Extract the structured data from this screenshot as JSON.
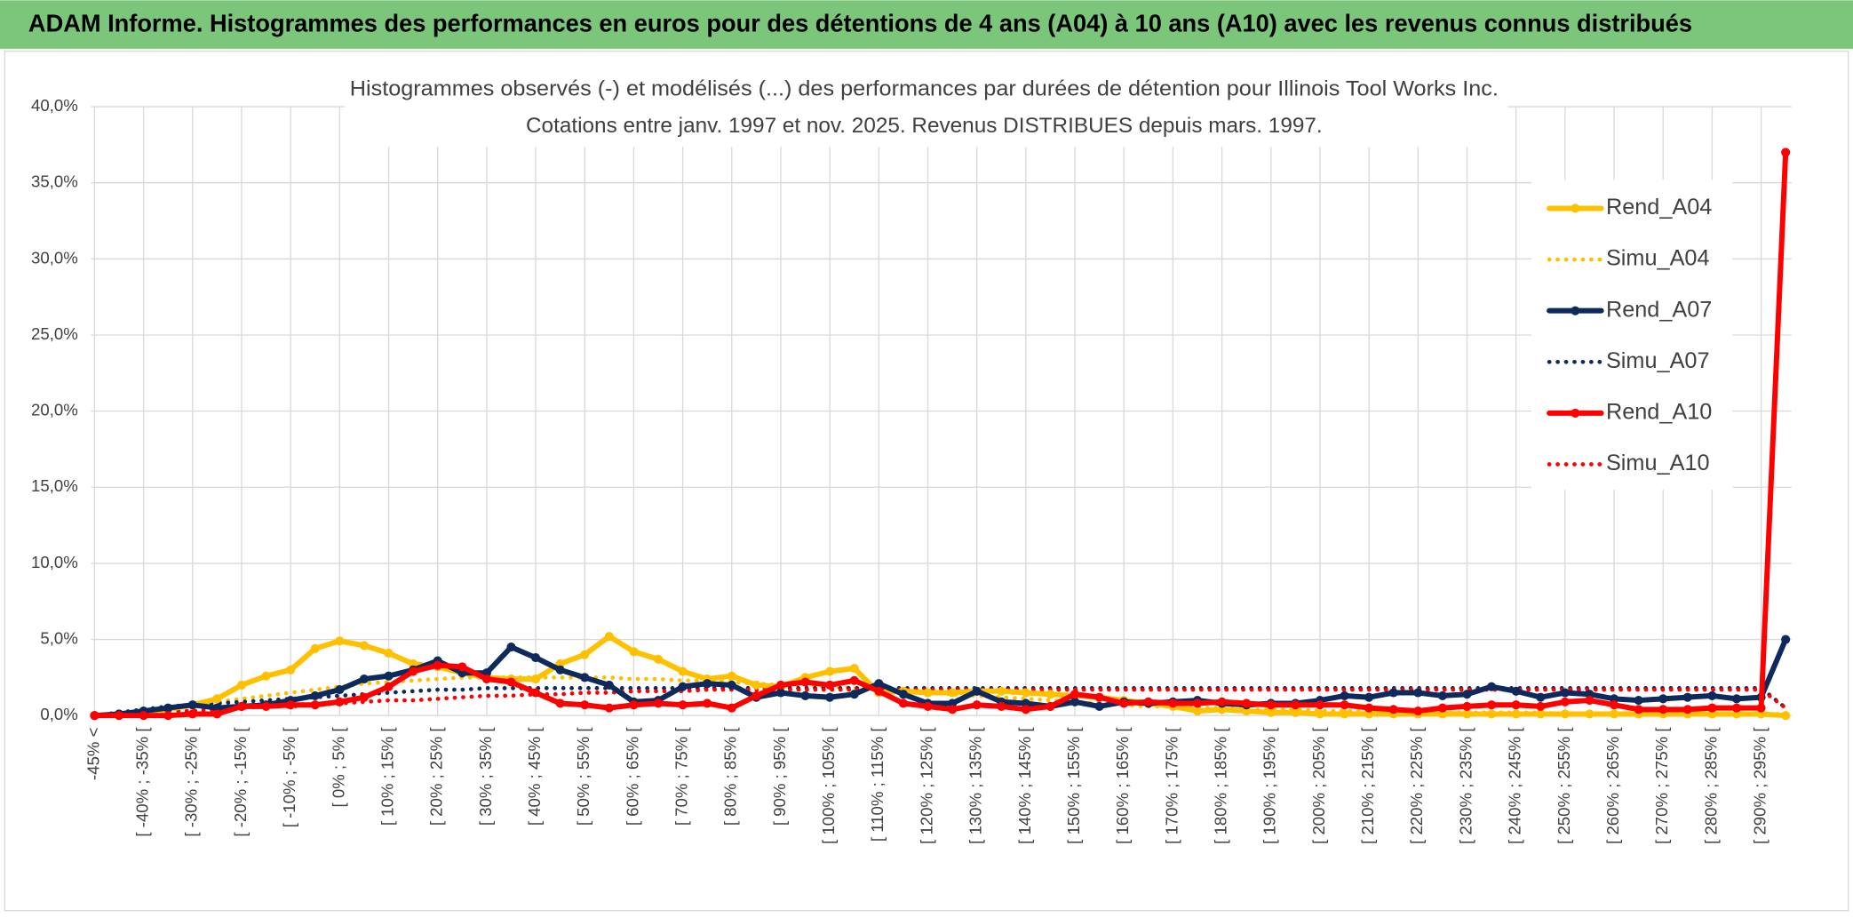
{
  "header": {
    "title": "ADAM Informe. Histogrammes des performances en euros pour des détentions de 4 ans (A04) à 10 ans (A10) avec les revenus connus distribués"
  },
  "chart_data": {
    "type": "line",
    "title": "Histogrammes observés (-) et modélisés (...) des performances par durées de détention pour Illinois Tool Works Inc.",
    "subtitle": "Cotations entre janv. 1997 et nov. 2025. Revenus DISTRIBUES depuis mars. 1997.",
    "categories": [
      "-45% <",
      null,
      "[ -40% ; -35% [",
      null,
      "[ -30% ; -25% [",
      null,
      "[ -20% ; -15% [",
      null,
      "[ -10% ; -5% [",
      null,
      "[ 0% ; 5% [",
      null,
      "[ 10% ; 15% [",
      null,
      "[ 20% ; 25% [",
      null,
      "[ 30% ; 35% [",
      null,
      "[ 40% ; 45% [",
      null,
      "[ 50% ; 55% [",
      null,
      "[ 60% ; 65% [",
      null,
      "[ 70% ; 75% [",
      null,
      "[ 80% ; 85% [",
      null,
      "[ 90% ; 95% [",
      null,
      "[ 100% ; 105% [",
      null,
      "[ 110% ; 115% [",
      null,
      "[ 120% ; 125% [",
      null,
      "[ 130% ; 135% [",
      null,
      "[ 140% ; 145% [",
      null,
      "[ 150% ; 155% [",
      null,
      "[ 160% ; 165% [",
      null,
      "[ 170% ; 175% [",
      null,
      "[ 180% ; 185% [",
      null,
      "[ 190% ; 195% [",
      null,
      "[ 200% ; 205% [",
      null,
      "[ 210% ; 215% [",
      null,
      "[ 220% ; 225% [",
      null,
      "[ 230% ; 235% [",
      null,
      "[ 240% ; 245% [",
      null,
      "[ 250% ; 255% [",
      null,
      "[ 260% ; 265% [",
      null,
      "[ 270% ; 275% [",
      null,
      "[ 280% ; 285% [",
      null,
      "[ 290% ; 295% [",
      null
    ],
    "series": [
      {
        "name": "Rend_A04",
        "color": "#ffc000",
        "style": "solid",
        "values": [
          0,
          0.1,
          0.2,
          0.4,
          0.7,
          1.1,
          2.0,
          2.6,
          3.0,
          4.4,
          4.9,
          4.6,
          4.1,
          3.4,
          3.2,
          2.8,
          2.5,
          2.4,
          2.4,
          3.4,
          4.0,
          5.2,
          4.2,
          3.7,
          2.9,
          2.4,
          2.6,
          2.0,
          1.9,
          2.5,
          2.9,
          3.1,
          1.5,
          1.6,
          1.5,
          1.5,
          1.6,
          1.6,
          1.5,
          1.4,
          1.3,
          1.2,
          1.0,
          0.8,
          0.6,
          0.3,
          0.4,
          0.3,
          0.2,
          0.2,
          0.1,
          0.1,
          0.1,
          0.1,
          0.1,
          0.1,
          0.1,
          0.1,
          0.1,
          0.1,
          0.1,
          0.1,
          0.1,
          0.1,
          0.1,
          0.1,
          0.1,
          0.1,
          0.1,
          0
        ]
      },
      {
        "name": "Simu_A04",
        "color": "#ffc000",
        "style": "dotted",
        "values": [
          0,
          0.1,
          0.3,
          0.5,
          0.7,
          0.9,
          1.1,
          1.3,
          1.5,
          1.7,
          1.9,
          2.1,
          2.2,
          2.3,
          2.4,
          2.5,
          2.5,
          2.5,
          2.5,
          2.5,
          2.5,
          2.5,
          2.4,
          2.4,
          2.3,
          2.3,
          2.2,
          2.1,
          2.0,
          2.0,
          1.9,
          1.8,
          1.7,
          1.6,
          1.5,
          1.4,
          1.3,
          1.2,
          1.1,
          1.0,
          0.9,
          0.8,
          0.7,
          0.6,
          0.6,
          0.5,
          0.5,
          0.4,
          0.4,
          0.4,
          0.3,
          0.3,
          0.3,
          0.3,
          0.2,
          0.2,
          0.2,
          0.2,
          0.2,
          0.2,
          0.1,
          0.1,
          0.1,
          0.1,
          0.1,
          0.1,
          0.1,
          0.1,
          0.1,
          0.1
        ]
      },
      {
        "name": "Rend_A07",
        "color": "#0e2a5c",
        "style": "solid",
        "values": [
          0,
          0.1,
          0.3,
          0.5,
          0.7,
          0.5,
          0.6,
          0.7,
          1.0,
          1.3,
          1.7,
          2.4,
          2.6,
          3.0,
          3.6,
          2.8,
          2.8,
          4.5,
          3.8,
          3.0,
          2.5,
          2.0,
          0.9,
          1.0,
          1.9,
          2.1,
          2.0,
          1.2,
          1.5,
          1.3,
          1.2,
          1.4,
          2.1,
          1.4,
          0.8,
          0.8,
          1.6,
          0.9,
          0.8,
          0.6,
          0.9,
          0.6,
          0.9,
          0.8,
          0.9,
          1.0,
          0.8,
          0.7,
          0.8,
          0.8,
          1.0,
          1.3,
          1.2,
          1.5,
          1.5,
          1.3,
          1.4,
          1.9,
          1.6,
          1.2,
          1.5,
          1.4,
          1.1,
          1.0,
          1.1,
          1.2,
          1.3,
          1.1,
          1.2,
          5.0
        ]
      },
      {
        "name": "Simu_A07",
        "color": "#0e2a5c",
        "style": "dotted",
        "values": [
          0,
          0.2,
          0.4,
          0.6,
          0.7,
          0.8,
          0.9,
          1.0,
          1.1,
          1.2,
          1.3,
          1.4,
          1.5,
          1.6,
          1.7,
          1.7,
          1.8,
          1.8,
          1.8,
          1.8,
          1.8,
          1.8,
          1.8,
          1.8,
          1.8,
          1.8,
          1.8,
          1.8,
          1.8,
          1.8,
          1.8,
          1.8,
          1.8,
          1.8,
          1.8,
          1.8,
          1.8,
          1.8,
          1.8,
          1.8,
          1.8,
          1.8,
          1.8,
          1.8,
          1.8,
          1.8,
          1.8,
          1.8,
          1.8,
          1.8,
          1.8,
          1.8,
          1.8,
          1.8,
          1.8,
          1.8,
          1.8,
          1.8,
          1.8,
          1.8,
          1.8,
          1.8,
          1.8,
          1.8,
          1.8,
          1.8,
          1.8,
          1.8,
          1.8,
          0.5
        ]
      },
      {
        "name": "Rend_A10",
        "color": "#ff0000",
        "style": "solid",
        "values": [
          0,
          0,
          0,
          0,
          0.1,
          0.1,
          0.6,
          0.6,
          0.7,
          0.7,
          0.9,
          1.2,
          1.9,
          2.9,
          3.3,
          3.2,
          2.4,
          2.2,
          1.5,
          0.8,
          0.7,
          0.5,
          0.7,
          0.8,
          0.7,
          0.8,
          0.5,
          1.3,
          2.0,
          2.2,
          2.0,
          2.3,
          1.6,
          0.8,
          0.6,
          0.4,
          0.7,
          0.6,
          0.4,
          0.6,
          1.4,
          1.2,
          0.8,
          0.9,
          0.8,
          0.8,
          0.9,
          0.8,
          0.7,
          0.7,
          0.7,
          0.7,
          0.5,
          0.4,
          0.3,
          0.5,
          0.6,
          0.7,
          0.7,
          0.6,
          0.9,
          1.0,
          0.7,
          0.4,
          0.4,
          0.4,
          0.5,
          0.5,
          0.5,
          37.0
        ]
      },
      {
        "name": "Simu_A10",
        "color": "#ff0000",
        "style": "dotted",
        "values": [
          0,
          0.1,
          0.2,
          0.3,
          0.3,
          0.4,
          0.5,
          0.6,
          0.6,
          0.7,
          0.8,
          0.9,
          1.0,
          1.0,
          1.1,
          1.2,
          1.3,
          1.3,
          1.4,
          1.4,
          1.5,
          1.5,
          1.6,
          1.6,
          1.6,
          1.7,
          1.7,
          1.7,
          1.7,
          1.7,
          1.7,
          1.7,
          1.7,
          1.7,
          1.7,
          1.7,
          1.7,
          1.7,
          1.7,
          1.7,
          1.7,
          1.7,
          1.7,
          1.7,
          1.7,
          1.7,
          1.7,
          1.7,
          1.7,
          1.7,
          1.7,
          1.7,
          1.7,
          1.7,
          1.7,
          1.7,
          1.7,
          1.7,
          1.7,
          1.7,
          1.7,
          1.7,
          1.7,
          1.7,
          1.7,
          1.7,
          1.7,
          1.7,
          1.7,
          0.5
        ]
      }
    ],
    "ylim": [
      0,
      40
    ],
    "yticks": [
      {
        "value": 0,
        "label": "0,0%"
      },
      {
        "value": 5,
        "label": "5,0%"
      },
      {
        "value": 10,
        "label": "10,0%"
      },
      {
        "value": 15,
        "label": "15,0%"
      },
      {
        "value": 20,
        "label": "20,0%"
      },
      {
        "value": 25,
        "label": "25,0%"
      },
      {
        "value": 30,
        "label": "30,0%"
      },
      {
        "value": 35,
        "label": "35,0%"
      },
      {
        "value": 40,
        "label": "40,0%"
      }
    ],
    "grid": true,
    "legend": "right"
  }
}
